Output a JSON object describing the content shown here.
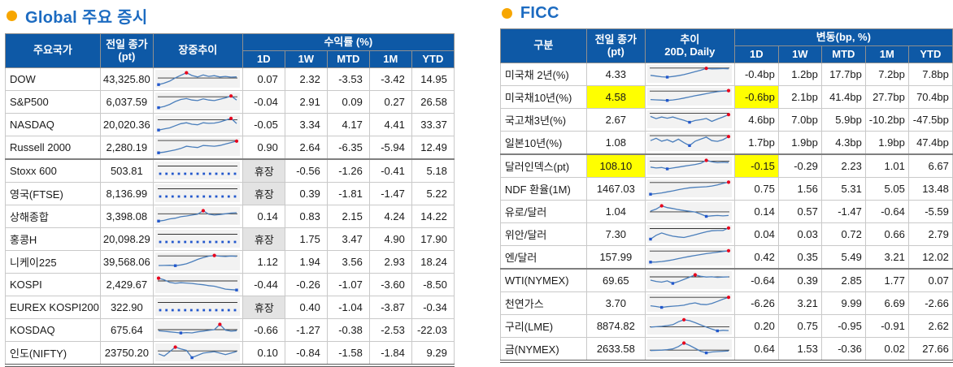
{
  "left": {
    "title": "Global 주요 증시",
    "headers": {
      "name": "주요국가",
      "close_l1": "전일 종가",
      "close_l2": "(pt)",
      "trend": "장중추이",
      "group": "수익률 (%)",
      "periods": [
        "1D",
        "1W",
        "MTD",
        "1M",
        "YTD"
      ]
    },
    "rows": [
      {
        "name": "DOW",
        "close": "43,325.80",
        "vals": [
          "0.07",
          "2.32",
          "-3.53",
          "-3.42",
          "14.95"
        ],
        "spark": {
          "pts": [
            10,
            20,
            34,
            56,
            74,
            91,
            72,
            62,
            76,
            66,
            71,
            62,
            66,
            61,
            63
          ],
          "ref": 45
        }
      },
      {
        "name": "S&P500",
        "close": "6,037.59",
        "vals": [
          "-0.04",
          "2.91",
          "0.09",
          "0.27",
          "26.58"
        ],
        "spark": {
          "pts": [
            8,
            16,
            30,
            50,
            64,
            70,
            60,
            56,
            68,
            60,
            56,
            65,
            75,
            88,
            60
          ],
          "ref": 18
        }
      },
      {
        "name": "NASDAQ",
        "close": "20,020.36",
        "vals": [
          "-0.05",
          "3.34",
          "4.17",
          "4.41",
          "33.37"
        ],
        "spark": {
          "pts": [
            10,
            18,
            25,
            40,
            54,
            60,
            50,
            46,
            60,
            56,
            58,
            65,
            78,
            90,
            55
          ],
          "ref": 20
        }
      },
      {
        "name": "Russell 2000",
        "close": "2,280.19",
        "vals": [
          "0.90",
          "2.64",
          "-6.35",
          "-5.94",
          "12.49"
        ],
        "spark": {
          "pts": [
            10,
            15,
            22,
            30,
            40,
            55,
            50,
            46,
            60,
            58,
            55,
            60,
            70,
            80,
            90
          ],
          "ref": 6
        }
      },
      {
        "name": "Stoxx 600",
        "close": "503.81",
        "vals": [
          "휴장",
          "-0.56",
          "-1.26",
          "-0.41",
          "5.18"
        ],
        "sep": true,
        "spark": {
          "flat": true
        }
      },
      {
        "name": "영국(FTSE)",
        "close": "8,136.99",
        "vals": [
          "휴장",
          "0.39",
          "-1.81",
          "-1.47",
          "5.22"
        ],
        "spark": {
          "flat": true
        }
      },
      {
        "name": "상해종합",
        "close": "3,398.08",
        "vals": [
          "0.14",
          "0.83",
          "2.15",
          "4.24",
          "14.22"
        ],
        "spark": {
          "pts": [
            15,
            20,
            30,
            35,
            45,
            50,
            56,
            62,
            86,
            62,
            56,
            60,
            65,
            70,
            72
          ],
          "ref": 35
        }
      },
      {
        "name": "홍콩H",
        "close": "20,098.29",
        "vals": [
          "휴장",
          "1.75",
          "3.47",
          "4.90",
          "17.90"
        ],
        "spark": {
          "flat": true
        }
      },
      {
        "name": "니케이225",
        "close": "39,568.06",
        "vals": [
          "1.12",
          "1.94",
          "3.56",
          "2.93",
          "18.24"
        ],
        "spark": {
          "pts": [
            22,
            23,
            24,
            21,
            26,
            34,
            48,
            64,
            76,
            86,
            91,
            86,
            84,
            87,
            85
          ],
          "ref": 12
        }
      },
      {
        "name": "KOSPI",
        "close": "2,429.67",
        "vals": [
          "-0.44",
          "-0.26",
          "-1.07",
          "-3.60",
          "-8.50"
        ],
        "spark": {
          "pts": [
            91,
            80,
            62,
            56,
            60,
            58,
            55,
            50,
            46,
            40,
            36,
            26,
            16,
            13,
            10
          ],
          "ref": 28
        }
      },
      {
        "name": "EUREX KOSPI200",
        "close": "322.90",
        "vals": [
          "휴장",
          "0.40",
          "-1.04",
          "-3.87",
          "-0.34"
        ],
        "spark": {
          "flat": true
        }
      },
      {
        "name": "KOSDAQ",
        "close": "675.64",
        "vals": [
          "-0.66",
          "-1.27",
          "-0.38",
          "-2.53",
          "-22.03"
        ],
        "spark": {
          "pts": [
            42,
            39,
            35,
            31,
            27,
            30,
            28,
            35,
            40,
            45,
            50,
            86,
            46,
            40,
            43
          ],
          "ref": 50
        }
      },
      {
        "name": "인도(NIFTY)",
        "close": "23750.20",
        "vals": [
          "0.10",
          "-0.84",
          "-1.58",
          "-1.84",
          "9.29"
        ],
        "spark": {
          "pts": [
            40,
            25,
            55,
            86,
            74,
            64,
            14,
            30,
            45,
            50,
            55,
            45,
            35,
            45,
            56
          ],
          "ref": 40
        }
      }
    ]
  },
  "right": {
    "title": "FICC",
    "headers": {
      "name": "구분",
      "close_l1": "전일 종가",
      "close_l2": "(pt)",
      "trend_l1": "추이",
      "trend_l2": "20D, Daily",
      "group": "변동(bp, %)",
      "periods": [
        "1D",
        "1W",
        "MTD",
        "1M",
        "YTD"
      ]
    },
    "rows": [
      {
        "name": "미국채 2년(%)",
        "close": "4.33",
        "vals": [
          "-0.4bp",
          "1.2bp",
          "17.7bp",
          "7.2bp",
          "7.8bp"
        ],
        "spark": {
          "pts": [
            40,
            35,
            30,
            28,
            32,
            38,
            45,
            55,
            65,
            75,
            88,
            84,
            85,
            86,
            85
          ],
          "ref": 10
        }
      },
      {
        "name": "미국채10년(%)",
        "close": "4.58",
        "close_hl": true,
        "val_hl": [
          0
        ],
        "vals": [
          "-0.6bp",
          "2.1bp",
          "41.4bp",
          "27.7bp",
          "70.4bp"
        ],
        "spark": {
          "pts": [
            30,
            28,
            26,
            24,
            27,
            33,
            40,
            48,
            56,
            63,
            70,
            78,
            84,
            88,
            91
          ],
          "ref": 12
        }
      },
      {
        "name": "국고채3년(%)",
        "close": "2.67",
        "vals": [
          "4.6bp",
          "7.0bp",
          "5.9bp",
          "-10.2bp",
          "-47.5bp"
        ],
        "spark": {
          "pts": [
            70,
            55,
            66,
            58,
            66,
            54,
            44,
            30,
            42,
            48,
            56,
            36,
            52,
            66,
            82
          ],
          "ref": 8
        }
      },
      {
        "name": "일본10년(%)",
        "close": "1.08",
        "vals": [
          "1.7bp",
          "1.9bp",
          "4.3bp",
          "1.9bp",
          "47.4bp"
        ],
        "spark": {
          "pts": [
            60,
            76,
            56,
            66,
            50,
            70,
            46,
            26,
            56,
            70,
            84,
            60,
            55,
            66,
            88
          ],
          "ref": 6
        }
      },
      {
        "name": "달러인덱스(pt)",
        "close": "108.10",
        "close_hl": true,
        "val_hl": [
          0
        ],
        "vals": [
          "-0.15",
          "-0.29",
          "2.23",
          "1.01",
          "6.67"
        ],
        "sep": true,
        "spark": {
          "pts": [
            40,
            34,
            37,
            28,
            34,
            40,
            46,
            52,
            58,
            66,
            86,
            76,
            70,
            73,
            71
          ],
          "ref": 20
        }
      },
      {
        "name": "NDF 환율(1M)",
        "close": "1467.03",
        "vals": [
          "0.75",
          "1.56",
          "5.31",
          "5.05",
          "13.48"
        ],
        "spark": {
          "pts": [
            10,
            14,
            19,
            26,
            33,
            41,
            48,
            54,
            57,
            59,
            61,
            66,
            74,
            84,
            92
          ],
          "ref": 10
        }
      },
      {
        "name": "유로/달러",
        "close": "1.04",
        "vals": [
          "0.14",
          "0.57",
          "-1.47",
          "-0.64",
          "-5.59"
        ],
        "spark": {
          "pts": [
            50,
            64,
            86,
            74,
            68,
            60,
            54,
            49,
            44,
            30,
            14,
            18,
            20,
            17,
            20
          ],
          "ref": 55
        }
      },
      {
        "name": "위안/달러",
        "close": "7.30",
        "vals": [
          "0.04",
          "0.03",
          "0.72",
          "0.66",
          "2.79"
        ],
        "spark": {
          "pts": [
            14,
            40,
            56,
            44,
            34,
            29,
            25,
            34,
            44,
            54,
            64,
            71,
            73,
            73,
            90
          ],
          "ref": 14
        }
      },
      {
        "name": "엔/달러",
        "close": "157.99",
        "vals": [
          "0.42",
          "0.35",
          "5.49",
          "3.21",
          "12.02"
        ],
        "spark": {
          "pts": [
            12,
            13,
            16,
            21,
            28,
            36,
            44,
            51,
            58,
            64,
            70,
            75,
            80,
            85,
            90
          ],
          "ref": 12
        }
      },
      {
        "name": "WTI(NYMEX)",
        "close": "69.65",
        "vals": [
          "-0.64",
          "0.39",
          "2.85",
          "1.77",
          "0.07"
        ],
        "sep": true,
        "spark": {
          "pts": [
            50,
            41,
            36,
            45,
            28,
            40,
            55,
            70,
            86,
            76,
            71,
            73,
            69,
            71,
            72
          ],
          "ref": 28
        }
      },
      {
        "name": "천연가스",
        "close": "3.70",
        "vals": [
          "-6.26",
          "3.21",
          "9.99",
          "6.69",
          "-2.66"
        ],
        "spark": {
          "pts": [
            30,
            25,
            19,
            24,
            27,
            30,
            34,
            44,
            50,
            40,
            38,
            46,
            60,
            75,
            88
          ],
          "ref": 12
        }
      },
      {
        "name": "구리(LME)",
        "close": "8874.82",
        "vals": [
          "0.20",
          "0.75",
          "-0.95",
          "-0.91",
          "2.62"
        ],
        "spark": {
          "pts": [
            40,
            42,
            45,
            50,
            56,
            76,
            90,
            84,
            70,
            55,
            40,
            26,
            14,
            18,
            16
          ],
          "ref": 58
        }
      },
      {
        "name": "금(NYMEX)",
        "close": "2633.58",
        "vals": [
          "0.64",
          "1.53",
          "-0.36",
          "0.02",
          "27.66"
        ],
        "spark": {
          "pts": [
            35,
            36,
            38,
            41,
            46,
            62,
            86,
            70,
            50,
            30,
            19,
            25,
            28,
            30,
            32
          ],
          "ref": 62
        }
      }
    ]
  },
  "colors": {
    "header_bg": "#0e59a6",
    "title_blue": "#1c6bc1",
    "bullet_orange": "#f7a600",
    "negative_red": "#fe0000",
    "highlight_yellow": "#ffff00",
    "closed_gray": "#e3e3e3",
    "spark_line": "#4a7ebb",
    "spark_max_red": "#e8001c",
    "spark_min_blue": "#2257cc"
  }
}
